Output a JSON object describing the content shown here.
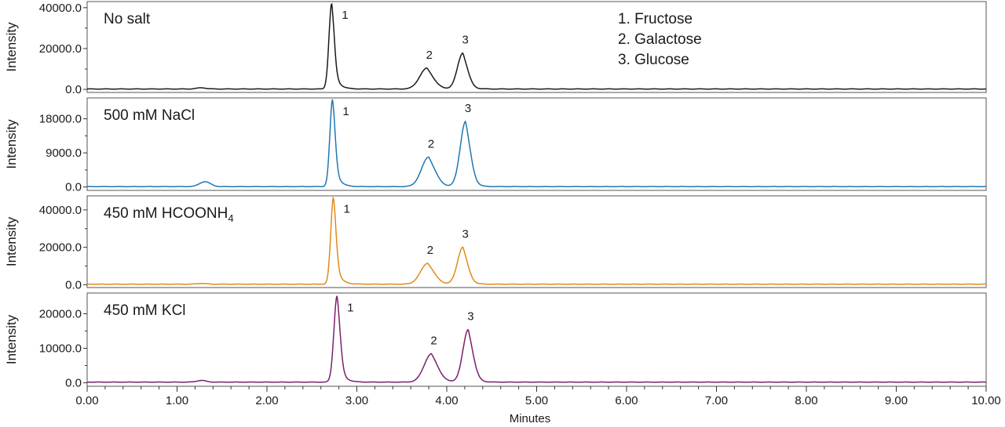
{
  "chart_data": {
    "type": "line",
    "layout": "stacked",
    "xlabel": "Minutes",
    "xlim": [
      0,
      10
    ],
    "xticks": [
      0,
      1,
      2,
      3,
      4,
      5,
      6,
      7,
      8,
      9,
      10
    ],
    "xtick_labels": [
      "0.00",
      "1.00",
      "2.00",
      "3.00",
      "4.00",
      "5.00",
      "6.00",
      "7.00",
      "8.00",
      "9.00",
      "10.00"
    ],
    "legend": {
      "placement": "top-right of first panel",
      "entries": [
        "1. Fructose",
        "2. Galactose",
        "3. Glucose"
      ]
    },
    "panels": [
      {
        "title": "No salt",
        "title_subscript": "",
        "color": "#1a1a1a",
        "ylabel": "Intensity",
        "ylim": [
          -1500,
          43000
        ],
        "yticks": [
          0,
          20000,
          40000
        ],
        "ytick_labels": [
          "0.0",
          "20000.0",
          "40000.0"
        ],
        "baseline": 200,
        "hump": {
          "x": 1.27,
          "height": 600,
          "width": 0.05
        },
        "peaks": [
          {
            "label": "1",
            "x": 2.72,
            "y": 42000,
            "width": 0.03,
            "tail": 0.05
          },
          {
            "label": "2",
            "x": 3.78,
            "y": 10200,
            "width": 0.08,
            "tail": 0.07
          },
          {
            "label": "3",
            "x": 4.18,
            "y": 17600,
            "width": 0.06,
            "tail": 0.05
          }
        ]
      },
      {
        "title": "500 mM NaCl",
        "title_subscript": "",
        "color": "#1f77b4",
        "ylabel": "Intensity",
        "ylim": [
          -900,
          23500
        ],
        "yticks": [
          0,
          9000,
          18000
        ],
        "ytick_labels": [
          "0.0",
          "9000.0",
          "18000.0"
        ],
        "baseline": 100,
        "hump": {
          "x": 1.31,
          "height": 1300,
          "width": 0.06
        },
        "peaks": [
          {
            "label": "1",
            "x": 2.73,
            "y": 23000,
            "width": 0.03,
            "tail": 0.05
          },
          {
            "label": "2",
            "x": 3.8,
            "y": 7800,
            "width": 0.08,
            "tail": 0.07
          },
          {
            "label": "3",
            "x": 4.21,
            "y": 17200,
            "width": 0.06,
            "tail": 0.05
          }
        ]
      },
      {
        "title": "450 mM HCOONH",
        "title_subscript": "4",
        "color": "#e08a1c",
        "ylabel": "Intensity",
        "ylim": [
          -1500,
          47500
        ],
        "yticks": [
          0,
          20000,
          40000
        ],
        "ytick_labels": [
          "0.0",
          "20000.0",
          "40000.0"
        ],
        "baseline": 300,
        "hump": {
          "x": 1.27,
          "height": 400,
          "width": 0.05
        },
        "peaks": [
          {
            "label": "1",
            "x": 2.74,
            "y": 46500,
            "width": 0.03,
            "tail": 0.05
          },
          {
            "label": "2",
            "x": 3.79,
            "y": 11200,
            "width": 0.08,
            "tail": 0.07
          },
          {
            "label": "3",
            "x": 4.18,
            "y": 19800,
            "width": 0.06,
            "tail": 0.05
          }
        ]
      },
      {
        "title": "450 mM KCl",
        "title_subscript": "",
        "color": "#7b1f6e",
        "ylabel": "Intensity",
        "ylim": [
          -1000,
          26000
        ],
        "yticks": [
          0,
          10000,
          20000
        ],
        "ytick_labels": [
          "0.0",
          "10000.0",
          "20000.0"
        ],
        "baseline": 200,
        "hump": {
          "x": 1.27,
          "height": 500,
          "width": 0.05
        },
        "peaks": [
          {
            "label": "1",
            "x": 2.78,
            "y": 25000,
            "width": 0.035,
            "tail": 0.05
          },
          {
            "label": "2",
            "x": 3.83,
            "y": 8200,
            "width": 0.08,
            "tail": 0.07
          },
          {
            "label": "3",
            "x": 4.24,
            "y": 15200,
            "width": 0.06,
            "tail": 0.05
          }
        ]
      }
    ]
  }
}
